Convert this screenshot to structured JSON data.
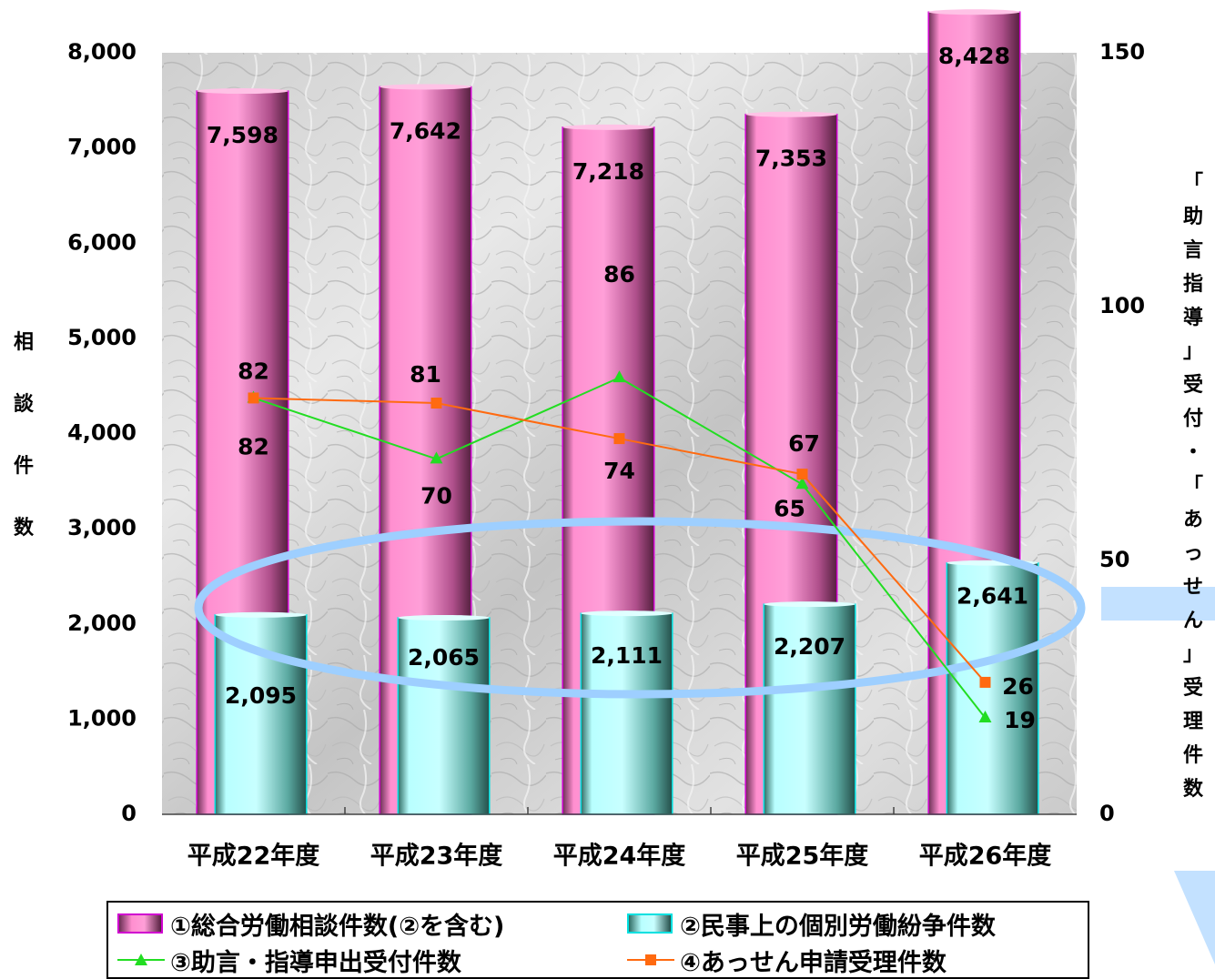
{
  "chart_data": {
    "type": "bar",
    "categories": [
      "平成22年度",
      "平成23年度",
      "平成24年度",
      "平成25年度",
      "平成26年度"
    ],
    "series": [
      {
        "name": "①総合労働相談件数(②を含む)",
        "kind": "bar",
        "axis": "left",
        "values": [
          7598,
          7642,
          7218,
          7353,
          8428
        ],
        "labels": [
          "7,598",
          "7,642",
          "7,218",
          "7,353",
          "8,428"
        ]
      },
      {
        "name": "②民事上の個別労働紛争件数",
        "kind": "bar",
        "axis": "left",
        "values": [
          2095,
          2065,
          2111,
          2207,
          2641
        ],
        "labels": [
          "2,095",
          "2,065",
          "2,111",
          "2,207",
          "2,641"
        ]
      },
      {
        "name": "③助言・指導申出受付件数",
        "kind": "line",
        "axis": "right",
        "marker": "triangle",
        "values": [
          82,
          70,
          86,
          65,
          19
        ],
        "labels": [
          "82",
          "70",
          "86",
          "65",
          "19"
        ]
      },
      {
        "name": "④あっせん申請受理件数",
        "kind": "line",
        "axis": "right",
        "marker": "square",
        "values": [
          82,
          81,
          74,
          67,
          26
        ],
        "labels": [
          "82",
          "81",
          "74",
          "67",
          "26"
        ]
      }
    ],
    "ylabel": "相談件数",
    "y2label": "「助言指導」受付・「あっせん」受理件数",
    "ylim": [
      0,
      8000
    ],
    "y2lim": [
      0,
      150
    ],
    "yticks": [
      "0",
      "1,000",
      "2,000",
      "3,000",
      "4,000",
      "5,000",
      "6,000",
      "7,000",
      "8,000"
    ],
    "y2ticks": [
      "0",
      "50",
      "100",
      "150"
    ],
    "grid": false,
    "legend_position": "bottom",
    "colors": {
      "bar1": "#ff8fd0",
      "bar1_dark": "#6b2f55",
      "bar1_edge": "#d000d0",
      "bar2": "#b8ffff",
      "bar2_dark": "#2f6b63",
      "bar2_edge": "#00e0e0",
      "line3": "#22dd22",
      "line4": "#ff6a10",
      "highlight": "#9ecfff"
    }
  }
}
